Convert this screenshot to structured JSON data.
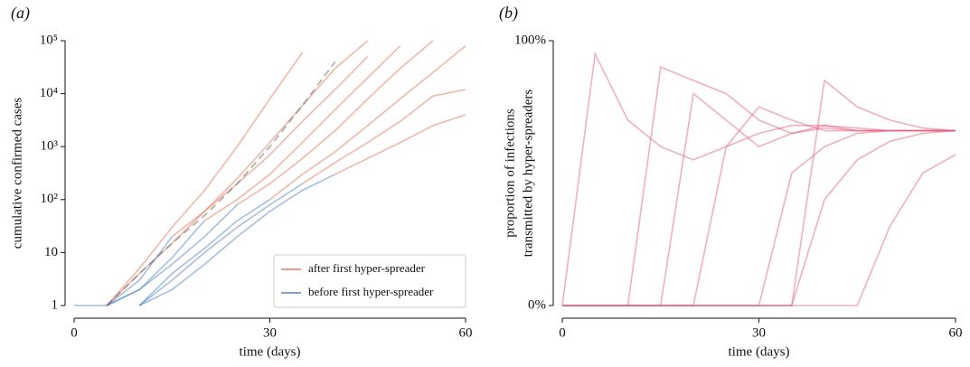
{
  "chart_data": [
    {
      "type": "line",
      "title": "(a)",
      "x_label": "time (days)",
      "y_label": "cumulative confirmed cases",
      "yscale": "log",
      "xlim": [
        0,
        60
      ],
      "xticks": [
        0,
        30,
        60
      ],
      "ylim": [
        1,
        100000
      ],
      "yticks": [
        1,
        10,
        {
          "value": 100,
          "label": "10²"
        },
        {
          "value": 1000,
          "label": "10³"
        },
        {
          "value": 10000,
          "label": "10⁴"
        },
        {
          "value": 100000,
          "label": "10⁵"
        }
      ],
      "legend": "lower right",
      "x": [
        0,
        5,
        10,
        15,
        20,
        25,
        30,
        35,
        40,
        45,
        50,
        55,
        60
      ],
      "series": [
        {
          "name": "after first hyper-spreader",
          "color": "#e0714f",
          "values": [
            null,
            1,
            5,
            30,
            150,
            1000,
            8000,
            60000,
            null,
            null,
            null,
            null,
            null
          ]
        },
        {
          "color": "#e0714f",
          "values": [
            null,
            1,
            4,
            15,
            60,
            250,
            1200,
            6000,
            30000,
            100000,
            null,
            null,
            null
          ]
        },
        {
          "color": "#e0714f",
          "values": [
            null,
            null,
            null,
            20,
            60,
            200,
            700,
            3000,
            12000,
            50000,
            null,
            null,
            null
          ]
        },
        {
          "color": "#e0714f",
          "values": [
            null,
            null,
            null,
            null,
            40,
            100,
            300,
            1200,
            5000,
            20000,
            80000,
            null,
            null
          ]
        },
        {
          "color": "#e0714f",
          "values": [
            null,
            null,
            null,
            null,
            null,
            80,
            200,
            600,
            2000,
            8000,
            30000,
            100000,
            null
          ]
        },
        {
          "color": "#e0714f",
          "values": [
            null,
            null,
            null,
            null,
            null,
            null,
            100,
            300,
            800,
            2500,
            8000,
            25000,
            80000
          ]
        },
        {
          "color": "#e0714f",
          "values": [
            null,
            null,
            null,
            null,
            null,
            null,
            null,
            200,
            500,
            1200,
            3000,
            9000,
            12000
          ]
        },
        {
          "color": "#e0714f",
          "values": [
            null,
            null,
            null,
            null,
            null,
            null,
            null,
            null,
            300,
            600,
            1200,
            2500,
            4000
          ]
        },
        {
          "name": "before first hyper-spreader",
          "color": "#4a7fc1",
          "values": [
            1,
            1,
            3,
            20,
            null,
            null,
            null,
            null,
            null,
            null,
            null,
            null,
            null
          ]
        },
        {
          "color": "#4a7fc1",
          "values": [
            null,
            1,
            2,
            8,
            40,
            null,
            null,
            null,
            null,
            null,
            null,
            null,
            null
          ]
        },
        {
          "color": "#4a7fc1",
          "values": [
            null,
            1,
            2,
            6,
            20,
            80,
            null,
            null,
            null,
            null,
            null,
            null,
            null
          ]
        },
        {
          "color": "#4a7fc1",
          "values": [
            null,
            null,
            1,
            4,
            12,
            40,
            100,
            null,
            null,
            null,
            null,
            null,
            null
          ]
        },
        {
          "color": "#4a7fc1",
          "values": [
            null,
            null,
            1,
            3,
            10,
            30,
            80,
            200,
            null,
            null,
            null,
            null,
            null
          ]
        },
        {
          "color": "#4a7fc1",
          "values": [
            null,
            null,
            1,
            2,
            6,
            20,
            60,
            150,
            300,
            null,
            null,
            null,
            null
          ]
        },
        {
          "color": "#555555",
          "dashed": true,
          "values": [
            null,
            1,
            4,
            15,
            50,
            200,
            1000,
            6000,
            40000,
            null,
            null,
            null,
            null
          ]
        }
      ]
    },
    {
      "type": "line",
      "title": "(b)",
      "x_label": "time (days)",
      "y_label": [
        "proportion of infections",
        "transmitted by hyper-spreaders"
      ],
      "xlim": [
        0,
        60
      ],
      "xticks": [
        0,
        30,
        60
      ],
      "ylim": [
        0,
        100
      ],
      "yticks": [
        {
          "value": 0,
          "label": "0%"
        },
        {
          "value": 100,
          "label": "100%"
        }
      ],
      "x": [
        0,
        5,
        10,
        15,
        20,
        25,
        30,
        35,
        40,
        45,
        50,
        55,
        60
      ],
      "series": [
        {
          "color": "#e3607f",
          "values": [
            0,
            95,
            70,
            60,
            55,
            60,
            65,
            68,
            68,
            66,
            66,
            66,
            66
          ]
        },
        {
          "color": "#e3607f",
          "values": [
            0,
            0,
            0,
            90,
            85,
            80,
            70,
            65,
            67,
            66,
            66,
            66,
            66
          ]
        },
        {
          "color": "#e3607f",
          "values": [
            0,
            0,
            0,
            0,
            80,
            70,
            60,
            65,
            68,
            67,
            66,
            66,
            66
          ]
        },
        {
          "color": "#e3607f",
          "values": [
            0,
            0,
            0,
            0,
            0,
            60,
            75,
            70,
            66,
            66,
            66,
            66,
            66
          ]
        },
        {
          "color": "#e3607f",
          "values": [
            0,
            0,
            0,
            0,
            0,
            0,
            0,
            50,
            60,
            65,
            66,
            66,
            66
          ]
        },
        {
          "color": "#e3607f",
          "values": [
            0,
            0,
            0,
            0,
            0,
            0,
            0,
            0,
            40,
            55,
            62,
            65,
            66
          ]
        },
        {
          "color": "#e3607f",
          "values": [
            0,
            0,
            0,
            0,
            0,
            0,
            0,
            0,
            0,
            0,
            30,
            50,
            57
          ]
        },
        {
          "color": "#e3607f",
          "values": [
            0,
            0,
            0,
            0,
            0,
            0,
            0,
            0,
            85,
            75,
            70,
            67,
            66
          ]
        }
      ]
    }
  ]
}
